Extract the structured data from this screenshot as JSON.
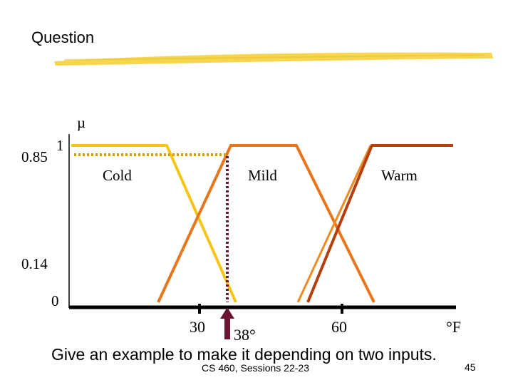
{
  "slide": {
    "title": "Question",
    "bottom_text": "Give an example to make it depending on two inputs.",
    "footer": "CS 460,  Sessions 22-23",
    "page_number": "45",
    "highlight_color": "#f5d23c"
  },
  "diagram": {
    "y_axis_symbol": "µ",
    "y_top_label": "1",
    "y_value_label": "0.85",
    "y_low_value_label": "0.14",
    "y_zero_label": "0",
    "x_tick_labels": [
      "30",
      "60"
    ],
    "input_label": "38°",
    "unit_label": "°F",
    "sets": [
      {
        "name": "Cold",
        "color": "#f5c518"
      },
      {
        "name": "Mild",
        "color": "#e8761c"
      },
      {
        "name": "Warm",
        "color": "#b5400e"
      }
    ],
    "extra_line_color": "#f08a20",
    "indicator_color": "#6b1434",
    "cut_line_color": "#c9a100"
  }
}
